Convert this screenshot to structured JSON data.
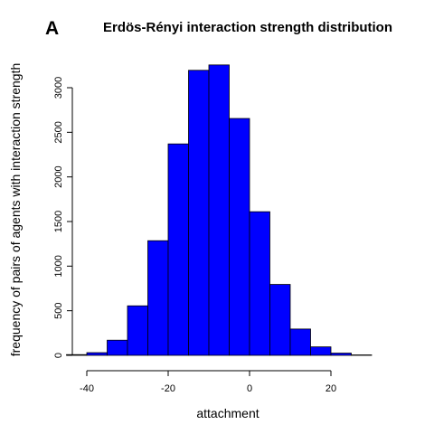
{
  "panel_label": "A",
  "chart_data": {
    "type": "bar",
    "title": "Erdös-Rényi interaction strength distribution",
    "xlabel": "attachment",
    "ylabel": "frequency of pairs of agents with interaction strength",
    "bin_edges": [
      -45,
      -40,
      -35,
      -30,
      -25,
      -20,
      -15,
      -10,
      -5,
      0,
      5,
      10,
      15,
      20,
      25,
      30
    ],
    "values": [
      8,
      30,
      170,
      555,
      1285,
      2370,
      3195,
      3255,
      2655,
      1610,
      795,
      295,
      95,
      25,
      5
    ],
    "xlim": [
      -45,
      30
    ],
    "ylim": [
      0,
      3300
    ],
    "x_ticks": [
      -40,
      -20,
      0,
      20
    ],
    "y_ticks": [
      0,
      500,
      1000,
      1500,
      2000,
      2500,
      3000
    ],
    "bar_color": "#0000ff",
    "grid": false
  }
}
